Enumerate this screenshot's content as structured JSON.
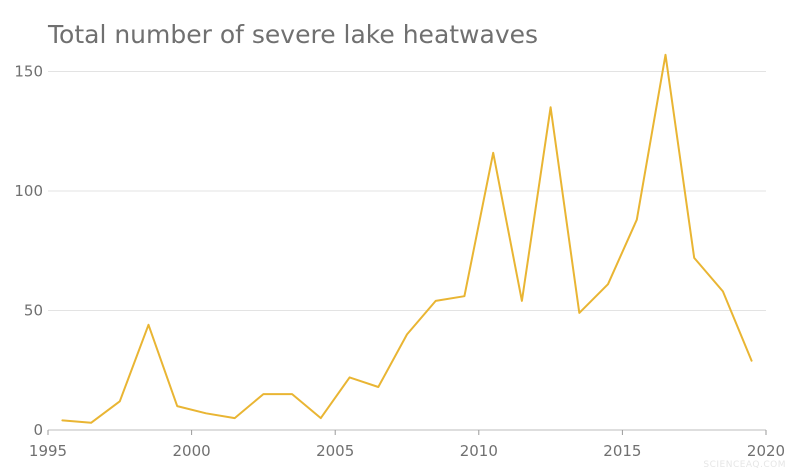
{
  "colors": {
    "line": "#E9B533"
  },
  "watermark": "SCIENCEAQ.COM",
  "chart_data": {
    "type": "line",
    "title": "Total number of severe lake heatwaves",
    "xlabel": "",
    "ylabel": "",
    "xlim": [
      1995,
      2020
    ],
    "ylim": [
      0,
      160
    ],
    "x_ticks": [
      1995,
      2000,
      2005,
      2010,
      2015,
      2020
    ],
    "y_ticks": [
      0,
      50,
      100,
      150
    ],
    "grid": true,
    "legend": "none",
    "series": [
      {
        "x": [
          1995.5,
          1996.5,
          1997.5,
          1998.5,
          1999.5,
          2000.5,
          2001.5,
          2002.5,
          2003.5,
          2004.5,
          2005.5,
          2006.5,
          2007.5,
          2008.5,
          2009.5,
          2010.5,
          2011.5,
          2012.5,
          2013.5,
          2014.5,
          2015.5,
          2016.5,
          2017.5,
          2018.5,
          2019.5
        ],
        "values": [
          4,
          3,
          12,
          44,
          10,
          7,
          5,
          15,
          15,
          5,
          22,
          18,
          40,
          54,
          56,
          116,
          54,
          135,
          49,
          61,
          88,
          157,
          72,
          58,
          29
        ]
      }
    ]
  }
}
